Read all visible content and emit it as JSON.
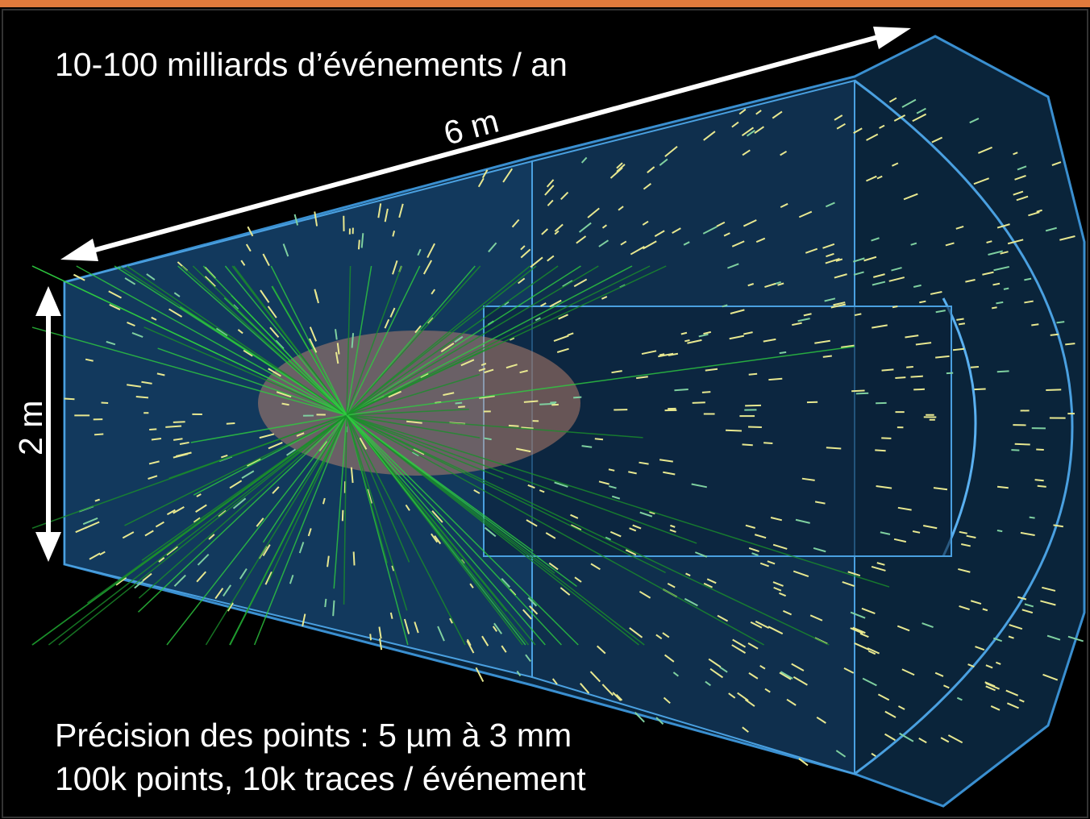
{
  "header": {
    "title": "10-100 milliards d’événements / an"
  },
  "annotations": {
    "length": "6 m",
    "height": "2 m"
  },
  "footer": {
    "line1": "Précision des points : 5 µm à 3 mm",
    "line2": "100k points, 10k traces / événement"
  }
}
